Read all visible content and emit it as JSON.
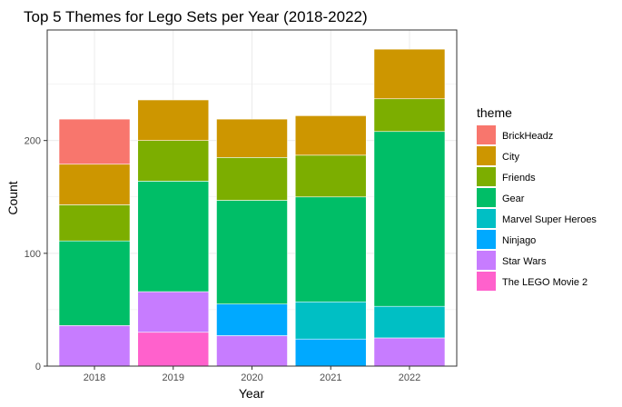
{
  "chart_data": {
    "type": "bar",
    "stacked": true,
    "title": "Top 5 Themes for Lego Sets per Year (2018-2022)",
    "xlabel": "Year",
    "ylabel": "Count",
    "categories": [
      "2018",
      "2019",
      "2020",
      "2021",
      "2022"
    ],
    "ylim": [
      0,
      298
    ],
    "yticks": [
      0,
      100,
      200
    ],
    "grid": true,
    "legend_title": "theme",
    "legend_position": "right",
    "series": [
      {
        "name": "BrickHeadz",
        "color": "#F8766D",
        "values": [
          40,
          0,
          0,
          0,
          0
        ]
      },
      {
        "name": "City",
        "color": "#CD9600",
        "values": [
          36,
          36,
          34,
          35,
          44
        ]
      },
      {
        "name": "Friends",
        "color": "#7CAE00",
        "values": [
          32,
          36,
          38,
          37,
          29
        ]
      },
      {
        "name": "Gear",
        "color": "#00BE67",
        "values": [
          75,
          98,
          92,
          93,
          155
        ]
      },
      {
        "name": "Marvel Super Heroes",
        "color": "#00BFC4",
        "values": [
          0,
          0,
          0,
          33,
          28
        ]
      },
      {
        "name": "Ninjago",
        "color": "#00A9FF",
        "values": [
          0,
          0,
          28,
          24,
          0
        ]
      },
      {
        "name": "Star Wars",
        "color": "#C77CFF",
        "values": [
          36,
          36,
          27,
          0,
          25
        ]
      },
      {
        "name": "The LEGO Movie 2",
        "color": "#FF61CC",
        "values": [
          0,
          30,
          0,
          0,
          0
        ]
      }
    ]
  }
}
